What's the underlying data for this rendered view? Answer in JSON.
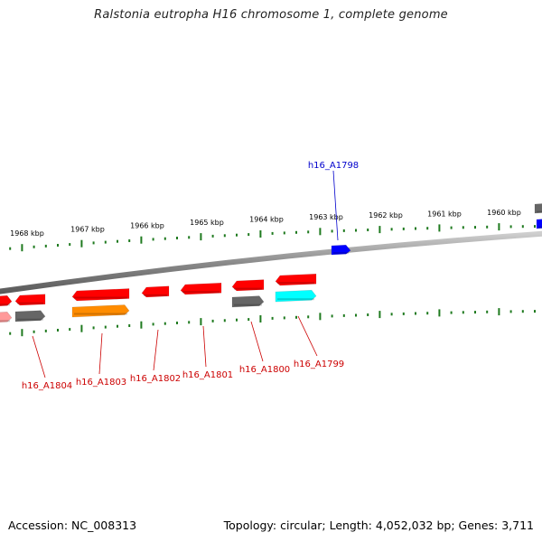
{
  "title": "Ralstonia eutropha H16 chromosome 1, complete genome",
  "footer": {
    "accession": "Accession: NC_008313",
    "topology": "Topology: circular; Length: 4,052,032 bp; Genes: 3,711"
  },
  "colors": {
    "backbone": "#8a8a8a",
    "ticks": "#1f7a1f",
    "top_label": "#0000cc",
    "bottom_label": "#cc0000",
    "gene_red": "#ff0000",
    "gene_pink": "#ff9999",
    "gene_gray": "#666666",
    "gene_orange": "#ff8c00",
    "gene_cyan": "#00ffff",
    "gene_blue": "#0000ff"
  },
  "kbp_labels": [
    "1968 kbp",
    "1967 kbp",
    "1966 kbp",
    "1965 kbp",
    "1964 kbp",
    "1963 kbp",
    "1962 kbp",
    "1961 kbp",
    "1960 kbp"
  ],
  "genes_above": [
    {
      "name": "h16_A1798",
      "color": "blue"
    }
  ],
  "genes_below": [
    {
      "name": "h16_A1804",
      "colors": [
        "red",
        "gray"
      ]
    },
    {
      "name": "h16_A1803",
      "colors": [
        "red",
        "orange"
      ]
    },
    {
      "name": "h16_A1802",
      "colors": [
        "red"
      ]
    },
    {
      "name": "h16_A1801",
      "colors": [
        "red"
      ]
    },
    {
      "name": "h16_A1800",
      "colors": [
        "red",
        "gray"
      ]
    },
    {
      "name": "h16_A1799",
      "colors": [
        "red",
        "cyan"
      ]
    }
  ]
}
